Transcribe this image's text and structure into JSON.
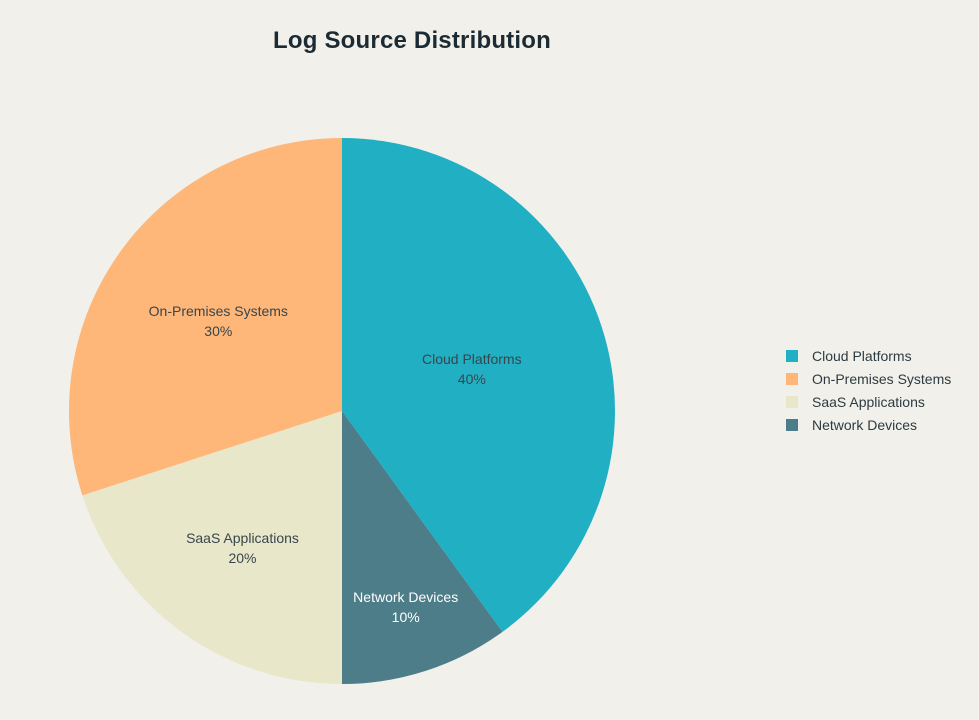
{
  "page": {
    "title": "Log Source Distribution"
  },
  "colors": {
    "background": "#f1f0ea",
    "title_text": "#1c2b33",
    "legend_text": "#2c3b42",
    "slice_label_dark": "#37464d",
    "slice_label_light": "#ffffff"
  },
  "chart_data": {
    "type": "pie",
    "title": "Log Source Distribution",
    "total": 100,
    "slices": [
      {
        "label": "Cloud Platforms",
        "value": 40,
        "pct_label": "40%",
        "color": "#21afc4",
        "text_color": "#37464d",
        "label_r": 0.5
      },
      {
        "label": "On-Premises Systems",
        "value": 30,
        "pct_label": "30%",
        "color": "#feb679",
        "text_color": "#37464d",
        "label_r": 0.56
      },
      {
        "label": "SaaS Applications",
        "value": 20,
        "pct_label": "20%",
        "color": "#e9e7c9",
        "text_color": "#37464d",
        "label_r": 0.62
      },
      {
        "label": "Network Devices",
        "value": 10,
        "pct_label": "10%",
        "color": "#4d7d88",
        "text_color": "#ffffff",
        "label_r": 0.755
      }
    ],
    "layout": {
      "direction": "clockwise",
      "start_angle_deg": 0,
      "draw_order": [
        0,
        3,
        2,
        1
      ],
      "legend_position": "right",
      "labels_inside": true,
      "grid": false
    }
  }
}
